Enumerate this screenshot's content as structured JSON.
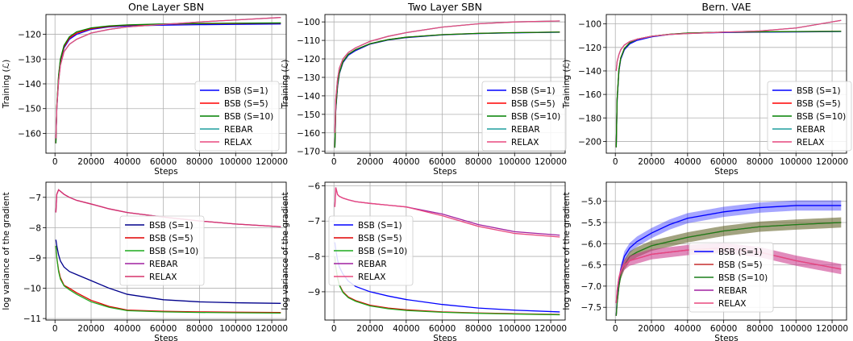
{
  "chart_data": [
    {
      "type": "line",
      "title": "One Layer SBN",
      "xlabel": "Steps",
      "ylabel": "Training (ℒ)",
      "xlim": [
        -5000,
        128000
      ],
      "ylim": [
        -168,
        -112
      ],
      "x_ticks": [
        0,
        20000,
        40000,
        60000,
        80000,
        100000,
        120000
      ],
      "x_tick_labels": [
        "0",
        "20000",
        "40000",
        "60000",
        "80000",
        "100000",
        "120000"
      ],
      "y_ticks": [
        -160,
        -150,
        -140,
        -130,
        -120
      ],
      "y_tick_labels": [
        "−160",
        "−150",
        "−140",
        "−130",
        "−120"
      ],
      "grid": true,
      "legend": "lower-right",
      "x": [
        500,
        1000,
        2000,
        3000,
        5000,
        8000,
        12000,
        20000,
        30000,
        40000,
        60000,
        80000,
        100000,
        125000
      ],
      "series": [
        {
          "name": "BSB (S=1)",
          "color": "#0000ff",
          "values": [
            -164,
            -150,
            -138,
            -131,
            -125.5,
            -122,
            -120,
            -118,
            -117,
            -116.6,
            -116.3,
            -116.1,
            -116,
            -115.8
          ]
        },
        {
          "name": "BSB (S=5)",
          "color": "#ff0000",
          "values": [
            -164,
            -149,
            -137,
            -130.5,
            -125,
            -121.5,
            -119.5,
            -117.7,
            -116.8,
            -116.3,
            -115.9,
            -115.7,
            -115.6,
            -115.5
          ]
        },
        {
          "name": "BSB (S=10)",
          "color": "#008000",
          "values": [
            -164,
            -149,
            -136.5,
            -130,
            -124.5,
            -121,
            -119,
            -117.4,
            -116.6,
            -116.2,
            -115.8,
            -115.6,
            -115.5,
            -115.4
          ]
        },
        {
          "name": "REBAR",
          "color": "#1f9e9e",
          "values": [
            -162,
            -150,
            -139,
            -132.5,
            -127,
            -124,
            -122,
            -119.5,
            -118,
            -117,
            -116,
            -115,
            -114.2,
            -113.2
          ]
        },
        {
          "name": "RELAX",
          "color": "#e8487f",
          "values": [
            -162,
            -150,
            -139,
            -132.5,
            -127,
            -124,
            -122,
            -119.5,
            -118,
            -117,
            -116,
            -115,
            -114.2,
            -113.2
          ]
        }
      ]
    },
    {
      "type": "line",
      "title": "Two Layer SBN",
      "xlabel": "Steps",
      "ylabel": "Training (ℒ)",
      "xlim": [
        -5000,
        128000
      ],
      "ylim": [
        -171,
        -96
      ],
      "x_ticks": [
        0,
        20000,
        40000,
        60000,
        80000,
        100000,
        120000
      ],
      "x_tick_labels": [
        "0",
        "20000",
        "40000",
        "60000",
        "80000",
        "100000",
        "120000"
      ],
      "y_ticks": [
        -170,
        -160,
        -150,
        -140,
        -130,
        -120,
        -110,
        -100
      ],
      "y_tick_labels": [
        "−170",
        "−160",
        "−150",
        "−140",
        "−130",
        "−120",
        "−110",
        "−100"
      ],
      "grid": true,
      "legend": "lower-right",
      "x": [
        500,
        1000,
        2000,
        3000,
        5000,
        8000,
        12000,
        20000,
        30000,
        40000,
        60000,
        80000,
        100000,
        125000
      ],
      "series": [
        {
          "name": "BSB (S=1)",
          "color": "#0000ff",
          "values": [
            -168,
            -148,
            -135,
            -128,
            -122,
            -118,
            -115.5,
            -112,
            -109.8,
            -108.5,
            -107,
            -106.3,
            -105.9,
            -105.6
          ]
        },
        {
          "name": "BSB (S=5)",
          "color": "#ff0000",
          "values": [
            -168,
            -147,
            -134,
            -127.5,
            -121.5,
            -117.5,
            -115,
            -111.8,
            -109.6,
            -108.3,
            -106.9,
            -106.2,
            -105.8,
            -105.5
          ]
        },
        {
          "name": "BSB (S=10)",
          "color": "#008000",
          "values": [
            -168,
            -147,
            -134,
            -127.5,
            -121.5,
            -117.5,
            -115,
            -111.8,
            -109.6,
            -108.3,
            -106.9,
            -106.2,
            -105.8,
            -105.5
          ]
        },
        {
          "name": "REBAR",
          "color": "#1f9e9e",
          "values": [
            -160,
            -142,
            -131,
            -125,
            -120,
            -116.5,
            -114,
            -110.5,
            -107.8,
            -105.8,
            -102.8,
            -101,
            -100,
            -99.5
          ]
        },
        {
          "name": "RELAX",
          "color": "#e8487f",
          "values": [
            -160,
            -142,
            -131,
            -125,
            -120,
            -116.5,
            -114,
            -110.5,
            -107.8,
            -105.8,
            -102.8,
            -101,
            -100,
            -99.5
          ]
        }
      ]
    },
    {
      "type": "line",
      "title": "Bern. VAE",
      "xlabel": "Steps",
      "ylabel": "Training (ℒ)",
      "xlim": [
        -5000,
        128000
      ],
      "ylim": [
        -210,
        -92
      ],
      "x_ticks": [
        0,
        20000,
        40000,
        60000,
        80000,
        100000,
        120000
      ],
      "x_tick_labels": [
        "0",
        "20000",
        "40000",
        "60000",
        "80000",
        "100000",
        "120000"
      ],
      "y_ticks": [
        -200,
        -180,
        -160,
        -140,
        -120,
        -100
      ],
      "y_tick_labels": [
        "−200",
        "−180",
        "−160",
        "−140",
        "−120",
        "−100"
      ],
      "grid": true,
      "legend": "lower-right",
      "x": [
        500,
        1000,
        2000,
        3000,
        5000,
        8000,
        12000,
        20000,
        30000,
        40000,
        60000,
        80000,
        100000,
        125000
      ],
      "series": [
        {
          "name": "BSB (S=1)",
          "color": "#0000ff",
          "values": [
            -205,
            -165,
            -140,
            -130,
            -122,
            -117,
            -114,
            -111,
            -109,
            -108,
            -107.3,
            -107,
            -106.8,
            -106.5
          ]
        },
        {
          "name": "BSB (S=5)",
          "color": "#ff0000",
          "values": [
            -205,
            -164,
            -139,
            -129,
            -121,
            -116,
            -113,
            -110.5,
            -108.8,
            -107.8,
            -107,
            -106.7,
            -106.5,
            -106.3
          ]
        },
        {
          "name": "BSB (S=10)",
          "color": "#008000",
          "values": [
            -205,
            -164,
            -139,
            -129,
            -121,
            -116,
            -113,
            -110.5,
            -108.8,
            -107.8,
            -107,
            -106.7,
            -106.5,
            -106.3
          ]
        },
        {
          "name": "REBAR",
          "color": "#1f9e9e",
          "values": [
            -140,
            -132,
            -126,
            -122,
            -118,
            -115,
            -113,
            -110.5,
            -109,
            -108.2,
            -107,
            -106,
            -103.5,
            -97
          ]
        },
        {
          "name": "RELAX",
          "color": "#e8487f",
          "values": [
            -140,
            -132,
            -126,
            -122,
            -118,
            -115,
            -113,
            -110.5,
            -109,
            -108.2,
            -107,
            -106,
            -103.5,
            -97
          ]
        }
      ]
    },
    {
      "type": "line",
      "title": "",
      "xlabel": "Steps",
      "ylabel": "log variance of the gradient",
      "xlim": [
        -5000,
        128000
      ],
      "ylim": [
        -11.05,
        -6.5
      ],
      "x_ticks": [
        0,
        20000,
        40000,
        60000,
        80000,
        100000,
        120000
      ],
      "x_tick_labels": [
        "0",
        "20000",
        "40000",
        "60000",
        "80000",
        "100000",
        "120000"
      ],
      "y_ticks": [
        -11,
        -10,
        -9,
        -8,
        -7
      ],
      "y_tick_labels": [
        "−11",
        "−10",
        "−9",
        "−8",
        "−7"
      ],
      "grid": true,
      "legend": "center",
      "x": [
        500,
        1000,
        2000,
        3000,
        5000,
        8000,
        12000,
        20000,
        30000,
        40000,
        60000,
        80000,
        100000,
        125000
      ],
      "series": [
        {
          "name": "BSB (S=1)",
          "color": "#00008b",
          "values": [
            -8.4,
            -8.6,
            -8.9,
            -9.1,
            -9.3,
            -9.45,
            -9.55,
            -9.75,
            -10.0,
            -10.2,
            -10.38,
            -10.45,
            -10.48,
            -10.5
          ]
        },
        {
          "name": "BSB (S=5)",
          "color": "#e00000",
          "values": [
            -8.6,
            -9.0,
            -9.4,
            -9.65,
            -9.9,
            -10.0,
            -10.15,
            -10.4,
            -10.6,
            -10.72,
            -10.76,
            -10.78,
            -10.79,
            -10.8
          ]
        },
        {
          "name": "BSB (S=10)",
          "color": "#1faa1f",
          "values": [
            -8.6,
            -9.0,
            -9.45,
            -9.7,
            -9.92,
            -10.05,
            -10.2,
            -10.45,
            -10.63,
            -10.74,
            -10.78,
            -10.8,
            -10.81,
            -10.82
          ]
        },
        {
          "name": "REBAR",
          "color": "#a020a0",
          "values": [
            -7.5,
            -6.9,
            -6.75,
            -6.8,
            -6.9,
            -7.0,
            -7.1,
            -7.22,
            -7.38,
            -7.5,
            -7.65,
            -7.78,
            -7.88,
            -7.97
          ]
        },
        {
          "name": "RELAX",
          "color": "#d6336c",
          "values": [
            -7.5,
            -6.9,
            -6.75,
            -6.8,
            -6.9,
            -7.0,
            -7.1,
            -7.22,
            -7.38,
            -7.5,
            -7.65,
            -7.78,
            -7.88,
            -7.97
          ]
        }
      ]
    },
    {
      "type": "line",
      "title": "",
      "xlabel": "Steps",
      "ylabel": "log variance of the gradient",
      "xlim": [
        -5000,
        128000
      ],
      "ylim": [
        -9.8,
        -5.9
      ],
      "x_ticks": [
        0,
        20000,
        40000,
        60000,
        80000,
        100000,
        120000
      ],
      "x_tick_labels": [
        "0",
        "20000",
        "40000",
        "60000",
        "80000",
        "100000",
        "120000"
      ],
      "y_ticks": [
        -9,
        -8,
        -7,
        -6
      ],
      "y_tick_labels": [
        "−9",
        "−8",
        "−7",
        "−6"
      ],
      "grid": true,
      "legend": "center-left",
      "x": [
        500,
        1000,
        2000,
        3000,
        5000,
        8000,
        12000,
        20000,
        30000,
        40000,
        60000,
        80000,
        100000,
        125000
      ],
      "series": [
        {
          "name": "BSB (S=1)",
          "color": "#0000ff",
          "values": [
            -7.6,
            -7.8,
            -8.1,
            -8.3,
            -8.5,
            -8.7,
            -8.85,
            -9.0,
            -9.12,
            -9.22,
            -9.36,
            -9.46,
            -9.52,
            -9.57
          ]
        },
        {
          "name": "BSB (S=5)",
          "color": "#e00000",
          "values": [
            -8.0,
            -8.3,
            -8.6,
            -8.8,
            -9.0,
            -9.15,
            -9.25,
            -9.38,
            -9.46,
            -9.51,
            -9.57,
            -9.6,
            -9.62,
            -9.64
          ]
        },
        {
          "name": "BSB (S=10)",
          "color": "#1faa1f",
          "values": [
            -8.0,
            -8.3,
            -8.62,
            -8.82,
            -9.02,
            -9.17,
            -9.27,
            -9.4,
            -9.48,
            -9.53,
            -9.58,
            -9.61,
            -9.63,
            -9.65
          ]
        },
        {
          "name": "REBAR",
          "color": "#a020a0",
          "values": [
            -6.6,
            -6.05,
            -6.25,
            -6.3,
            -6.35,
            -6.4,
            -6.45,
            -6.5,
            -6.55,
            -6.6,
            -6.8,
            -7.1,
            -7.3,
            -7.4
          ]
        },
        {
          "name": "RELAX",
          "color": "#e8487f",
          "values": [
            -6.6,
            -6.05,
            -6.25,
            -6.3,
            -6.35,
            -6.4,
            -6.45,
            -6.5,
            -6.55,
            -6.6,
            -6.85,
            -7.15,
            -7.35,
            -7.45
          ]
        }
      ]
    },
    {
      "type": "line",
      "title": "",
      "xlabel": "Steps",
      "ylabel": "log variance of the gradient",
      "xlim": [
        -5000,
        128000
      ],
      "ylim": [
        -7.8,
        -4.55
      ],
      "x_ticks": [
        0,
        20000,
        40000,
        60000,
        80000,
        100000,
        120000
      ],
      "x_tick_labels": [
        "0",
        "20000",
        "40000",
        "60000",
        "80000",
        "100000",
        "120000"
      ],
      "y_ticks": [
        -7.5,
        -7.0,
        -6.5,
        -6.0,
        -5.5,
        -5.0
      ],
      "y_tick_labels": [
        "−7.5",
        "−7.0",
        "−6.5",
        "−6.0",
        "−5.5",
        "−5.0"
      ],
      "grid": true,
      "legend": "lower-center",
      "x": [
        500,
        1000,
        2000,
        3000,
        5000,
        8000,
        12000,
        20000,
        30000,
        40000,
        60000,
        80000,
        100000,
        125000
      ],
      "series": [
        {
          "name": "BSB (S=1)",
          "color": "#0000ff",
          "values": [
            -7.7,
            -7.3,
            -6.9,
            -6.6,
            -6.3,
            -6.1,
            -5.95,
            -5.75,
            -5.55,
            -5.4,
            -5.25,
            -5.15,
            -5.1,
            -5.1
          ]
        },
        {
          "name": "BSB (S=5)",
          "color": "#c83030",
          "values": [
            -7.7,
            -7.4,
            -7.0,
            -6.75,
            -6.5,
            -6.3,
            -6.2,
            -6.05,
            -5.95,
            -5.85,
            -5.7,
            -5.6,
            -5.55,
            -5.5
          ]
        },
        {
          "name": "BSB (S=10)",
          "color": "#1a7f1a",
          "values": [
            -7.7,
            -7.4,
            -7.0,
            -6.75,
            -6.5,
            -6.3,
            -6.2,
            -6.05,
            -5.95,
            -5.85,
            -5.7,
            -5.6,
            -5.55,
            -5.5
          ]
        },
        {
          "name": "REBAR",
          "color": "#a020a0",
          "values": [
            -7.4,
            -7.1,
            -6.8,
            -6.65,
            -6.5,
            -6.4,
            -6.35,
            -6.25,
            -6.2,
            -6.15,
            -6.1,
            -6.2,
            -6.4,
            -6.6
          ]
        },
        {
          "name": "RELAX",
          "color": "#e8487f",
          "values": [
            -7.4,
            -7.1,
            -6.8,
            -6.65,
            -6.5,
            -6.4,
            -6.35,
            -6.25,
            -6.2,
            -6.15,
            -6.1,
            -6.2,
            -6.4,
            -6.6
          ]
        }
      ]
    }
  ]
}
